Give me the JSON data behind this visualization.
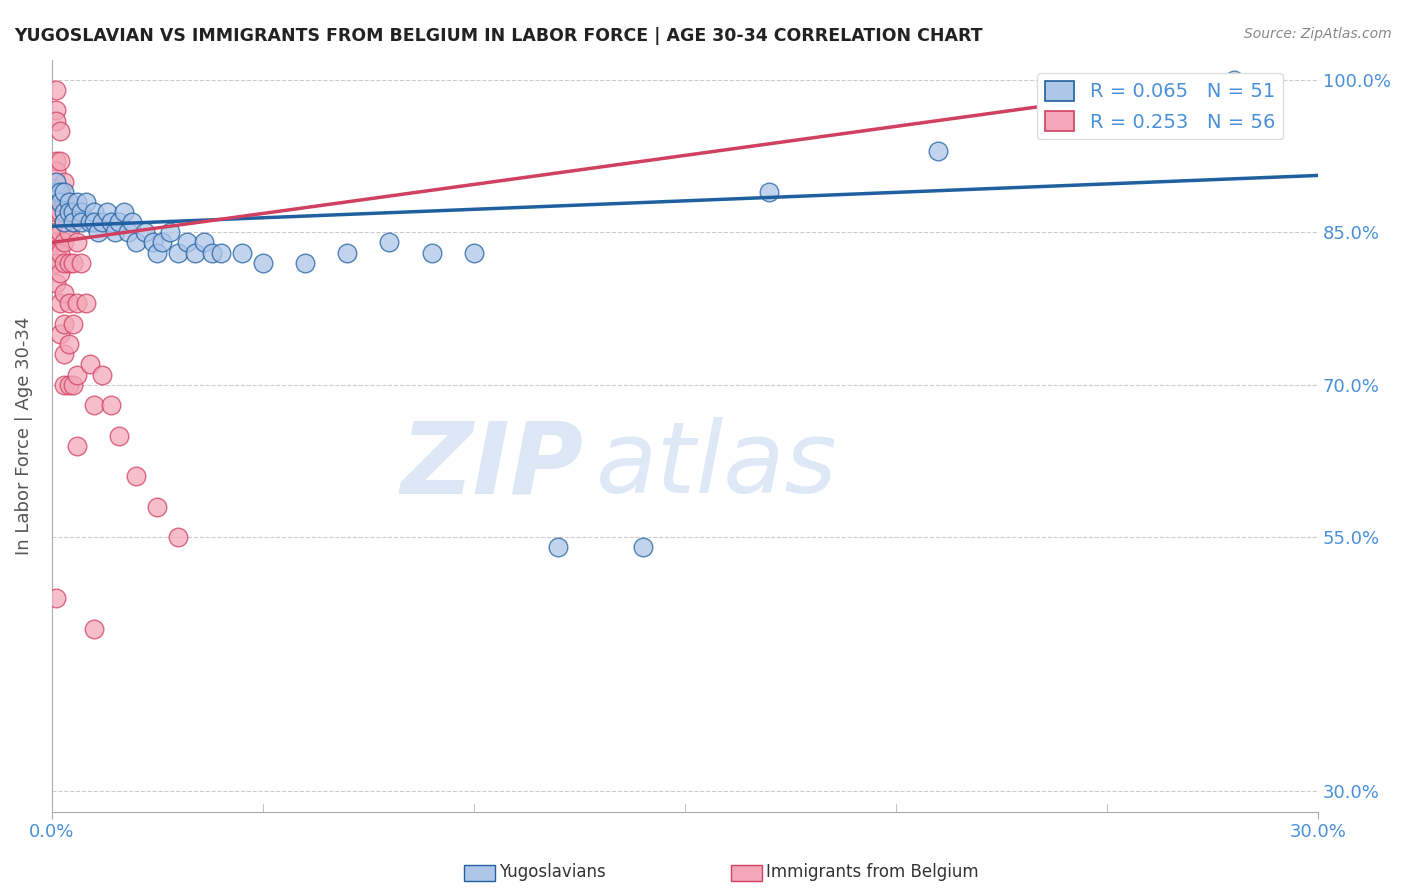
{
  "title": "YUGOSLAVIAN VS IMMIGRANTS FROM BELGIUM IN LABOR FORCE | AGE 30-34 CORRELATION CHART",
  "source": "Source: ZipAtlas.com",
  "ylabel": "In Labor Force | Age 30-34",
  "xlim": [
    0.0,
    0.3
  ],
  "ylim": [
    0.28,
    1.02
  ],
  "blue_color": "#aec6e8",
  "pink_color": "#f4a7b9",
  "line_blue": "#2060a0",
  "line_pink": "#d04060",
  "title_color": "#222222",
  "tick_color": "#4a90d9",
  "grid_color": "#cccccc",
  "blue_scatter": [
    [
      0.001,
      0.89
    ],
    [
      0.001,
      0.9
    ],
    [
      0.002,
      0.89
    ],
    [
      0.002,
      0.88
    ],
    [
      0.003,
      0.87
    ],
    [
      0.003,
      0.89
    ],
    [
      0.003,
      0.86
    ],
    [
      0.004,
      0.88
    ],
    [
      0.004,
      0.87
    ],
    [
      0.005,
      0.87
    ],
    [
      0.005,
      0.86
    ],
    [
      0.006,
      0.88
    ],
    [
      0.007,
      0.87
    ],
    [
      0.007,
      0.86
    ],
    [
      0.008,
      0.88
    ],
    [
      0.009,
      0.86
    ],
    [
      0.01,
      0.87
    ],
    [
      0.01,
      0.86
    ],
    [
      0.011,
      0.85
    ],
    [
      0.012,
      0.86
    ],
    [
      0.013,
      0.87
    ],
    [
      0.014,
      0.86
    ],
    [
      0.015,
      0.85
    ],
    [
      0.016,
      0.86
    ],
    [
      0.017,
      0.87
    ],
    [
      0.018,
      0.85
    ],
    [
      0.019,
      0.86
    ],
    [
      0.02,
      0.84
    ],
    [
      0.022,
      0.85
    ],
    [
      0.024,
      0.84
    ],
    [
      0.025,
      0.83
    ],
    [
      0.026,
      0.84
    ],
    [
      0.028,
      0.85
    ],
    [
      0.03,
      0.83
    ],
    [
      0.032,
      0.84
    ],
    [
      0.034,
      0.83
    ],
    [
      0.036,
      0.84
    ],
    [
      0.038,
      0.83
    ],
    [
      0.04,
      0.83
    ],
    [
      0.045,
      0.83
    ],
    [
      0.05,
      0.82
    ],
    [
      0.06,
      0.82
    ],
    [
      0.07,
      0.83
    ],
    [
      0.08,
      0.84
    ],
    [
      0.09,
      0.83
    ],
    [
      0.1,
      0.83
    ],
    [
      0.12,
      0.54
    ],
    [
      0.14,
      0.54
    ],
    [
      0.17,
      0.89
    ],
    [
      0.21,
      0.93
    ],
    [
      0.28,
      1.0
    ]
  ],
  "pink_scatter": [
    [
      0.001,
      0.99
    ],
    [
      0.001,
      0.97
    ],
    [
      0.001,
      0.96
    ],
    [
      0.001,
      0.92
    ],
    [
      0.001,
      0.91
    ],
    [
      0.001,
      0.88
    ],
    [
      0.001,
      0.87
    ],
    [
      0.001,
      0.85
    ],
    [
      0.001,
      0.84
    ],
    [
      0.001,
      0.83
    ],
    [
      0.001,
      0.82
    ],
    [
      0.001,
      0.8
    ],
    [
      0.002,
      0.95
    ],
    [
      0.002,
      0.92
    ],
    [
      0.002,
      0.89
    ],
    [
      0.002,
      0.87
    ],
    [
      0.002,
      0.85
    ],
    [
      0.002,
      0.83
    ],
    [
      0.002,
      0.81
    ],
    [
      0.002,
      0.78
    ],
    [
      0.002,
      0.75
    ],
    [
      0.003,
      0.9
    ],
    [
      0.003,
      0.88
    ],
    [
      0.003,
      0.86
    ],
    [
      0.003,
      0.84
    ],
    [
      0.003,
      0.82
    ],
    [
      0.003,
      0.79
    ],
    [
      0.003,
      0.76
    ],
    [
      0.003,
      0.73
    ],
    [
      0.003,
      0.7
    ],
    [
      0.004,
      0.88
    ],
    [
      0.004,
      0.85
    ],
    [
      0.004,
      0.82
    ],
    [
      0.004,
      0.78
    ],
    [
      0.004,
      0.74
    ],
    [
      0.004,
      0.7
    ],
    [
      0.005,
      0.86
    ],
    [
      0.005,
      0.82
    ],
    [
      0.005,
      0.76
    ],
    [
      0.005,
      0.7
    ],
    [
      0.006,
      0.84
    ],
    [
      0.006,
      0.78
    ],
    [
      0.006,
      0.71
    ],
    [
      0.006,
      0.64
    ],
    [
      0.007,
      0.82
    ],
    [
      0.008,
      0.78
    ],
    [
      0.009,
      0.72
    ],
    [
      0.01,
      0.68
    ],
    [
      0.012,
      0.71
    ],
    [
      0.014,
      0.68
    ],
    [
      0.016,
      0.65
    ],
    [
      0.02,
      0.61
    ],
    [
      0.025,
      0.58
    ],
    [
      0.03,
      0.55
    ],
    [
      0.01,
      0.46
    ],
    [
      0.001,
      0.49
    ]
  ],
  "blue_line_x": [
    0.0,
    0.3
  ],
  "blue_line_y": [
    0.856,
    0.906
  ],
  "pink_line_x": [
    0.0,
    0.28
  ],
  "pink_line_y": [
    0.84,
    1.0
  ],
  "ytick_vals": [
    1.0,
    0.85,
    0.7,
    0.55,
    0.3
  ],
  "ytick_labels": [
    "100.0%",
    "85.0%",
    "70.0%",
    "55.0%",
    "30.0%"
  ],
  "xtick_positions": [
    0.0,
    0.3
  ],
  "xtick_labels": [
    "0.0%",
    "30.0%"
  ]
}
